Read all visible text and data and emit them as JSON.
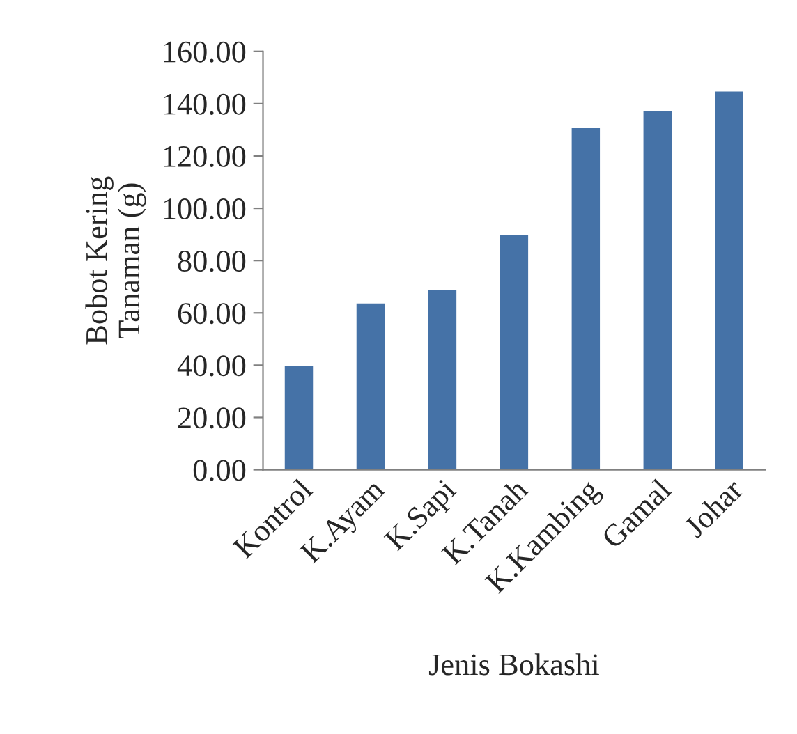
{
  "chart_data": {
    "type": "bar",
    "categories": [
      "Kontrol",
      "K.Ayam",
      "K.Sapi",
      "K.Tanah",
      "K.Kambing",
      "Gamal",
      "Johar"
    ],
    "values": [
      40,
      64,
      69,
      90,
      131,
      137.5,
      145
    ],
    "color": "#4572a7",
    "xlabel": "Jenis Bokashi",
    "ylabel": "Bobot Kering\nTanaman (g)",
    "ylim": [
      0,
      160
    ],
    "yticks": [
      {
        "value": 0,
        "label": "0.00"
      },
      {
        "value": 20,
        "label": "20.00"
      },
      {
        "value": 40,
        "label": "40.00"
      },
      {
        "value": 60,
        "label": "60.00"
      },
      {
        "value": 80,
        "label": "80.00"
      },
      {
        "value": 100,
        "label": "100.00"
      },
      {
        "value": 120,
        "label": "120.00"
      },
      {
        "value": 140,
        "label": "140.00"
      },
      {
        "value": 160,
        "label": "160.00"
      }
    ],
    "grid": false,
    "legend": false
  }
}
